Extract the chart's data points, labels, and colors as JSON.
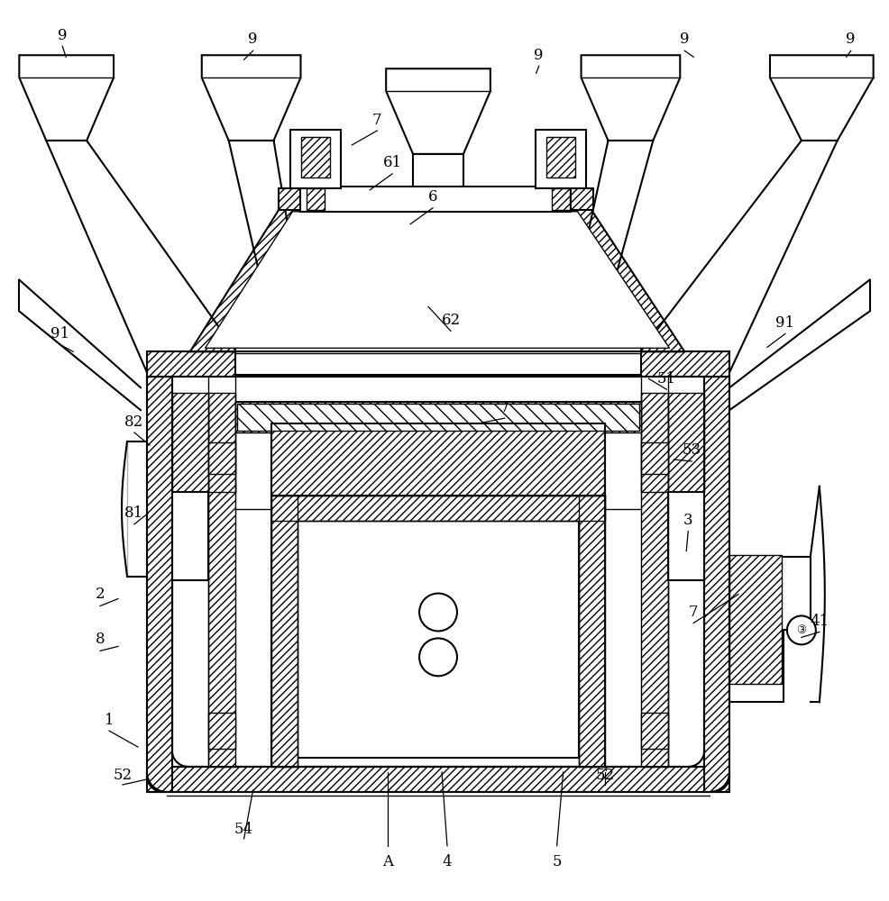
{
  "bg_color": "#ffffff",
  "lc": "#000000",
  "lw_main": 1.5,
  "lw_thin": 1.0,
  "hatch_dense": "////",
  "hatch_x": "xxxx"
}
